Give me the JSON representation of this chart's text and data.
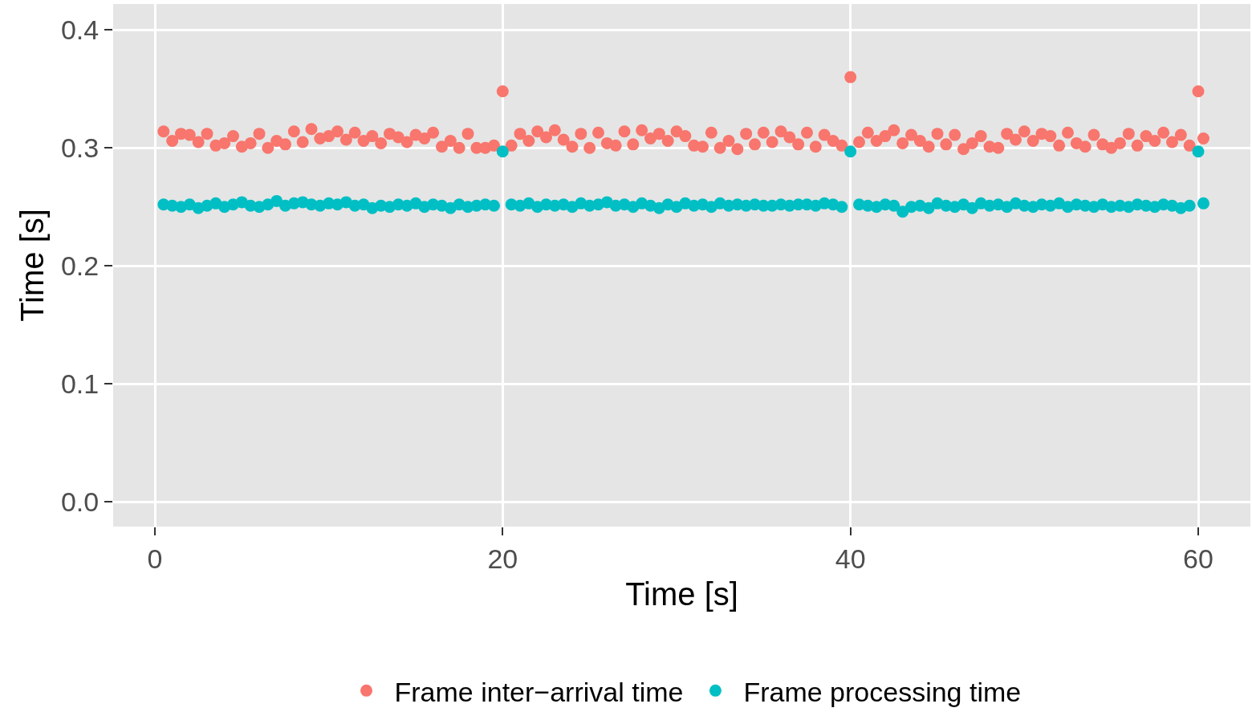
{
  "chart_data": {
    "type": "scatter",
    "xlabel": "Time [s]",
    "ylabel": "Time [s]",
    "x": [
      0.5,
      1.0,
      1.5,
      2.0,
      2.5,
      3.0,
      3.5,
      4.0,
      4.5,
      5.0,
      5.5,
      6.0,
      6.5,
      7.0,
      7.5,
      8.0,
      8.5,
      9.0,
      9.5,
      10.0,
      10.5,
      11.0,
      11.5,
      12.0,
      12.5,
      13.0,
      13.5,
      14.0,
      14.5,
      15.0,
      15.5,
      16.0,
      16.5,
      17.0,
      17.5,
      18.0,
      18.5,
      19.0,
      19.5,
      20.0,
      20.5,
      21.0,
      21.5,
      22.0,
      22.5,
      23.0,
      23.5,
      24.0,
      24.5,
      25.0,
      25.5,
      26.0,
      26.5,
      27.0,
      27.5,
      28.0,
      28.5,
      29.0,
      29.5,
      30.0,
      30.5,
      31.0,
      31.5,
      32.0,
      32.5,
      33.0,
      33.5,
      34.0,
      34.5,
      35.0,
      35.5,
      36.0,
      36.5,
      37.0,
      37.5,
      38.0,
      38.5,
      39.0,
      39.5,
      40.0,
      40.5,
      41.0,
      41.5,
      42.0,
      42.5,
      43.0,
      43.5,
      44.0,
      44.5,
      45.0,
      45.5,
      46.0,
      46.5,
      47.0,
      47.5,
      48.0,
      48.5,
      49.0,
      49.5,
      50.0,
      50.5,
      51.0,
      51.5,
      52.0,
      52.5,
      53.0,
      53.5,
      54.0,
      54.5,
      55.0,
      55.5,
      56.0,
      56.5,
      57.0,
      57.5,
      58.0,
      58.5,
      59.0,
      59.5,
      60.0,
      60.3
    ],
    "series": [
      {
        "name": "Frame inter−arrival time",
        "color": "#f8766d",
        "values": [
          0.314,
          0.306,
          0.312,
          0.311,
          0.305,
          0.312,
          0.302,
          0.304,
          0.31,
          0.301,
          0.304,
          0.312,
          0.3,
          0.306,
          0.303,
          0.314,
          0.305,
          0.316,
          0.308,
          0.31,
          0.314,
          0.307,
          0.313,
          0.306,
          0.31,
          0.304,
          0.312,
          0.309,
          0.305,
          0.311,
          0.308,
          0.313,
          0.301,
          0.306,
          0.3,
          0.312,
          0.3,
          0.3,
          0.302,
          0.348,
          0.302,
          0.312,
          0.306,
          0.314,
          0.309,
          0.315,
          0.307,
          0.301,
          0.312,
          0.3,
          0.313,
          0.304,
          0.302,
          0.314,
          0.303,
          0.315,
          0.308,
          0.312,
          0.306,
          0.314,
          0.31,
          0.302,
          0.301,
          0.313,
          0.3,
          0.306,
          0.299,
          0.312,
          0.303,
          0.313,
          0.305,
          0.314,
          0.309,
          0.303,
          0.313,
          0.301,
          0.311,
          0.306,
          0.302,
          0.36,
          0.305,
          0.313,
          0.306,
          0.31,
          0.315,
          0.304,
          0.311,
          0.306,
          0.301,
          0.312,
          0.303,
          0.311,
          0.299,
          0.304,
          0.31,
          0.301,
          0.3,
          0.312,
          0.307,
          0.314,
          0.306,
          0.312,
          0.31,
          0.302,
          0.313,
          0.304,
          0.301,
          0.311,
          0.303,
          0.3,
          0.304,
          0.312,
          0.302,
          0.31,
          0.306,
          0.313,
          0.305,
          0.311,
          0.302,
          0.348,
          0.308
        ]
      },
      {
        "name": "Frame processing time",
        "color": "#00bfc4",
        "values": [
          0.252,
          0.251,
          0.25,
          0.252,
          0.249,
          0.251,
          0.253,
          0.25,
          0.252,
          0.254,
          0.251,
          0.25,
          0.252,
          0.255,
          0.251,
          0.253,
          0.254,
          0.252,
          0.251,
          0.253,
          0.252,
          0.254,
          0.251,
          0.252,
          0.249,
          0.251,
          0.25,
          0.252,
          0.251,
          0.253,
          0.25,
          0.252,
          0.251,
          0.249,
          0.252,
          0.25,
          0.251,
          0.252,
          0.251,
          0.297,
          0.252,
          0.251,
          0.253,
          0.25,
          0.252,
          0.251,
          0.252,
          0.25,
          0.253,
          0.251,
          0.252,
          0.254,
          0.251,
          0.252,
          0.25,
          0.253,
          0.251,
          0.249,
          0.252,
          0.25,
          0.253,
          0.251,
          0.252,
          0.25,
          0.253,
          0.251,
          0.252,
          0.251,
          0.252,
          0.251,
          0.251,
          0.252,
          0.251,
          0.252,
          0.252,
          0.251,
          0.253,
          0.252,
          0.25,
          0.297,
          0.252,
          0.251,
          0.25,
          0.252,
          0.251,
          0.246,
          0.25,
          0.251,
          0.249,
          0.253,
          0.251,
          0.25,
          0.252,
          0.249,
          0.253,
          0.251,
          0.252,
          0.25,
          0.253,
          0.251,
          0.25,
          0.252,
          0.251,
          0.253,
          0.25,
          0.252,
          0.251,
          0.25,
          0.252,
          0.25,
          0.251,
          0.25,
          0.252,
          0.251,
          0.25,
          0.252,
          0.251,
          0.249,
          0.251,
          0.297,
          0.253
        ]
      }
    ],
    "xlim": [
      -2.4,
      63.0
    ],
    "xticks": [
      0,
      20,
      40,
      60
    ],
    "ylim": [
      -0.021,
      0.422
    ],
    "yticks": [
      {
        "value": 0,
        "label": "0.0"
      },
      0.1,
      0.2,
      0.3,
      0.4
    ],
    "grid": true,
    "legend": "bottom",
    "marker": "circle"
  }
}
